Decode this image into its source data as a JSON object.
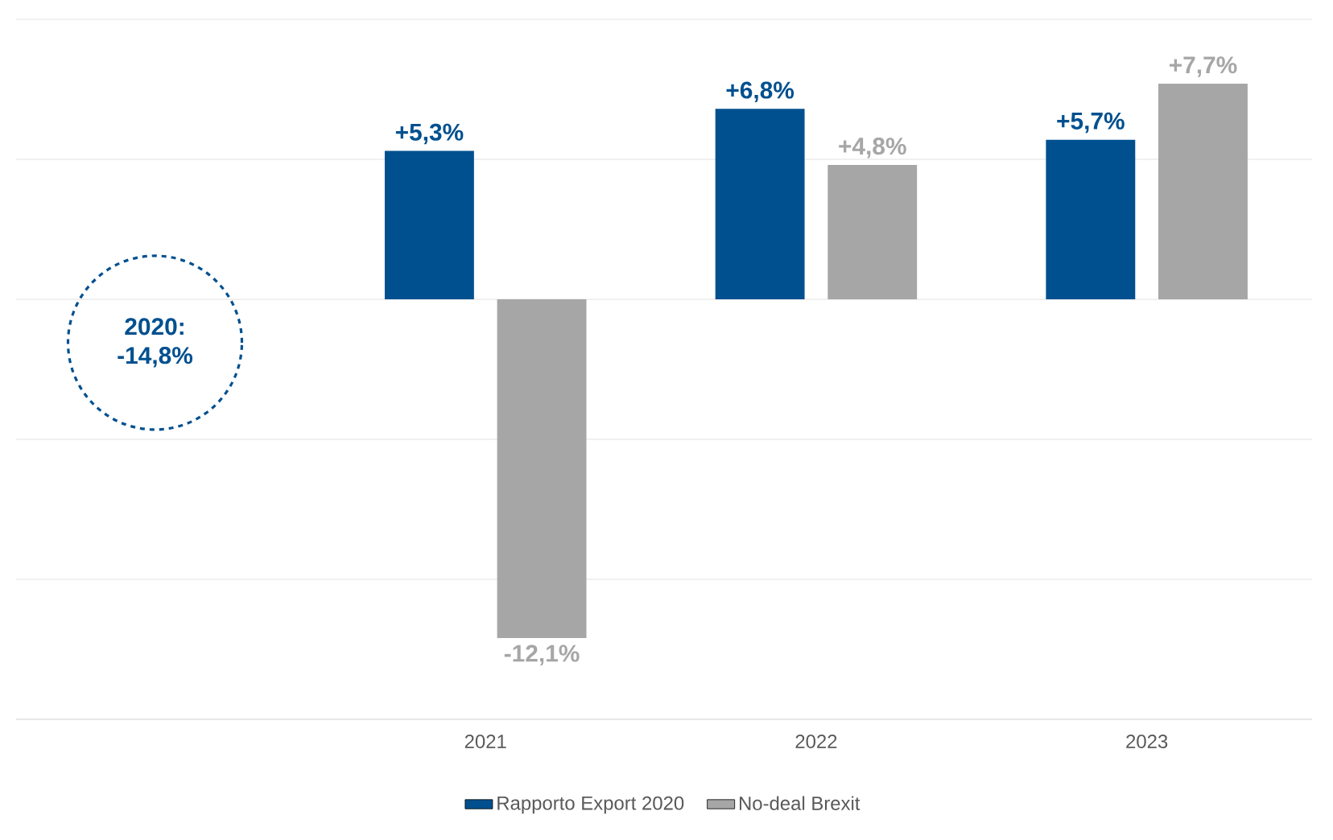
{
  "chart_data": {
    "type": "bar",
    "categories": [
      null,
      "2021",
      "2022",
      "2023"
    ],
    "series": [
      {
        "name": "Rapporto Export 2020",
        "color": "#00508f",
        "values": [
          null,
          5.3,
          6.8,
          5.7
        ],
        "value_labels": [
          null,
          "+5,3%",
          "+6,8%",
          "+5,7%"
        ]
      },
      {
        "name": "No-deal Brexit",
        "color": "#a6a6a6",
        "values": [
          null,
          -12.1,
          4.8,
          7.7
        ],
        "value_labels": [
          null,
          "-12,1%",
          "+4,8%",
          "+7,7%"
        ]
      }
    ],
    "ylim": [
      -15,
      10
    ],
    "yticks": [
      {
        "value": -15,
        "label": null
      },
      {
        "value": -10,
        "label": null
      },
      {
        "value": -5,
        "label": null
      },
      {
        "value": 0,
        "label": null
      },
      {
        "value": 5,
        "label": null
      },
      {
        "value": 10,
        "label": null
      }
    ],
    "tick_labels": "x",
    "grid": "y",
    "legend": "bottom",
    "annotations": [
      "2020: -14,8%"
    ]
  }
}
